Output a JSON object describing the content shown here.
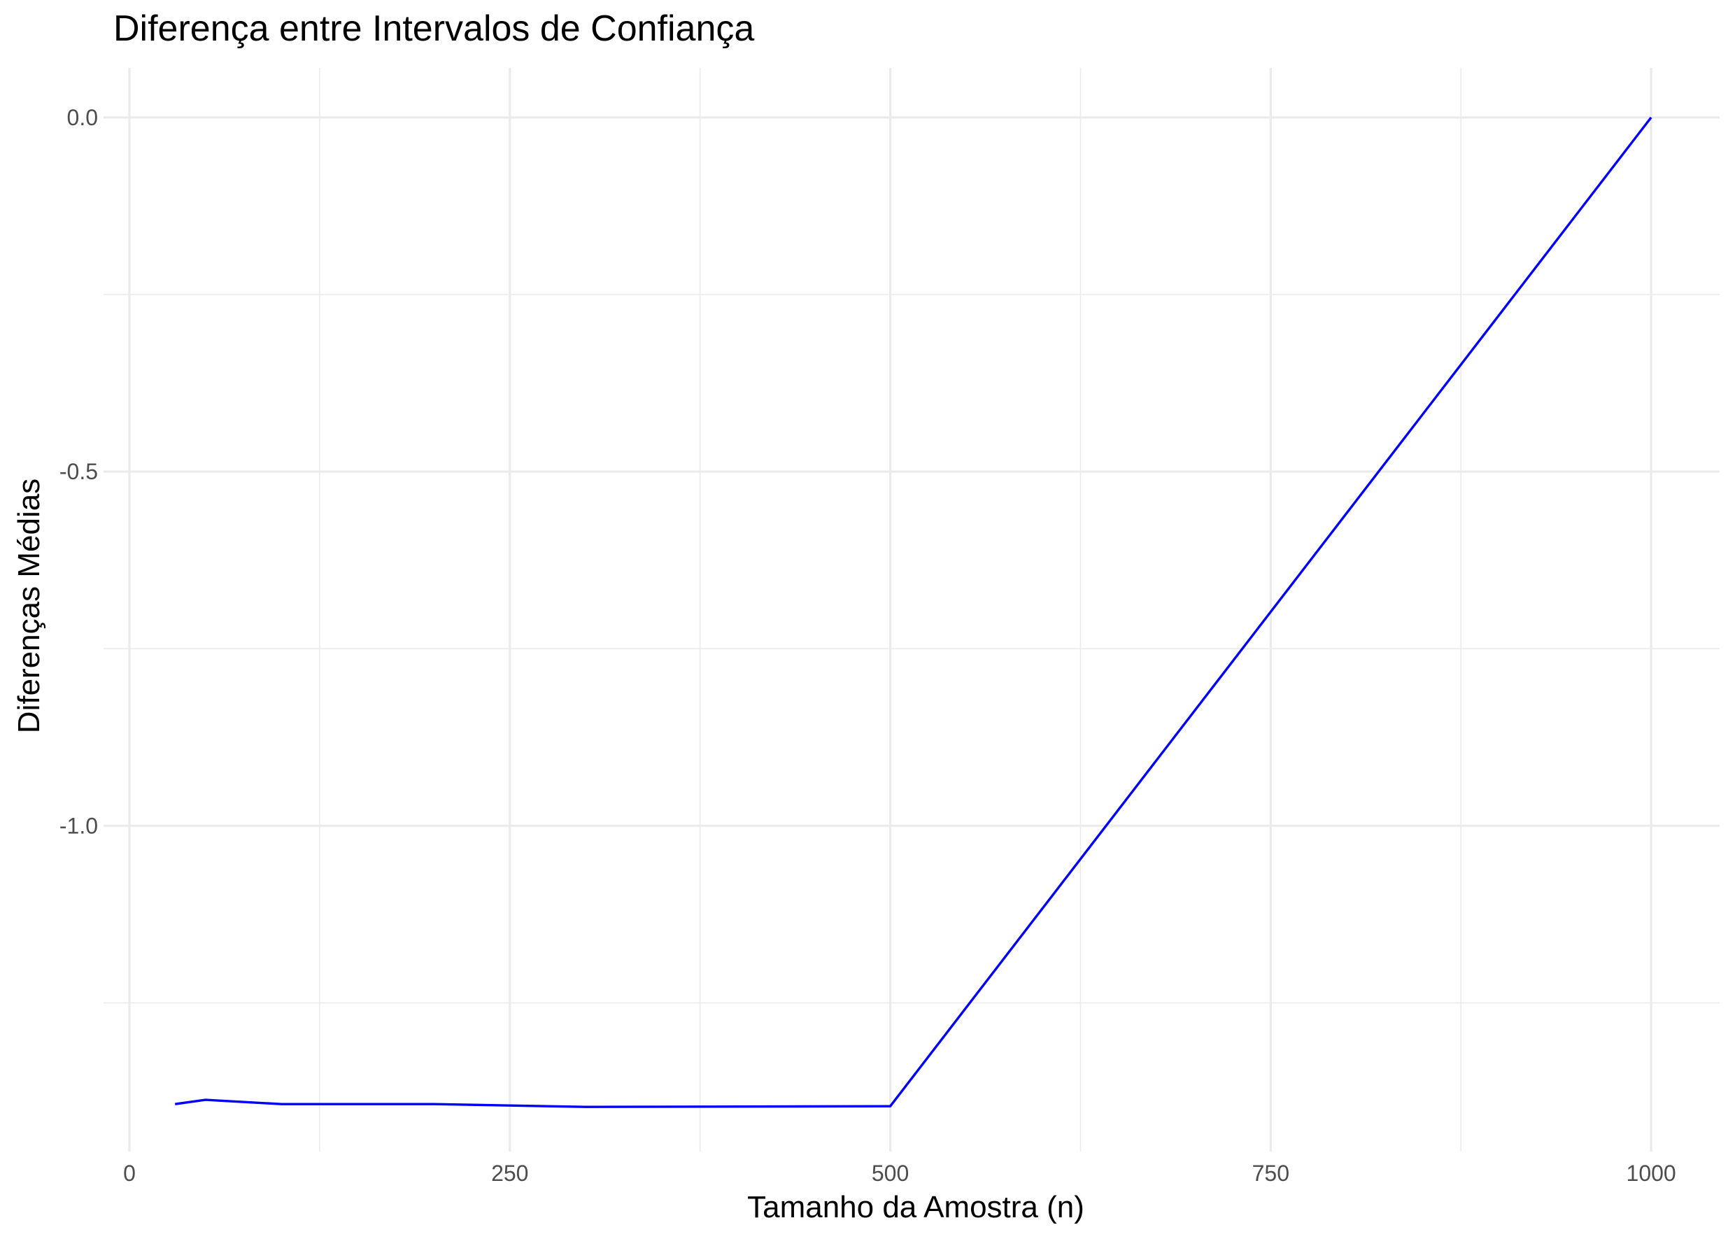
{
  "chart_data": {
    "type": "line",
    "title": "Diferença entre Intervalos de Confiança",
    "xlabel": "Tamanho da Amostra (n)",
    "ylabel": "Diferenças Médias",
    "xlim": [
      -17,
      1045
    ],
    "ylim": [
      -1.46,
      0.07
    ],
    "x_major_ticks": [
      0,
      250,
      500,
      750,
      1000
    ],
    "x_major_tick_labels": [
      "0",
      "250",
      "500",
      "750",
      "1000"
    ],
    "x_minor_ticks": [
      125,
      375,
      625,
      875
    ],
    "y_major_ticks": [
      0,
      -0.5,
      -1
    ],
    "y_major_tick_labels": [
      "0.0",
      "-0.5",
      "-1.0"
    ],
    "y_minor_ticks": [
      -0.25,
      -0.75,
      -1.25
    ],
    "grid": true,
    "legend": "none",
    "series": [
      {
        "color": "#0000ff",
        "x": [
          30,
          50,
          100,
          200,
          300,
          500,
          1000
        ],
        "y": [
          -1.393,
          -1.387,
          -1.393,
          -1.393,
          -1.397,
          -1.396,
          0.0
        ]
      }
    ]
  }
}
